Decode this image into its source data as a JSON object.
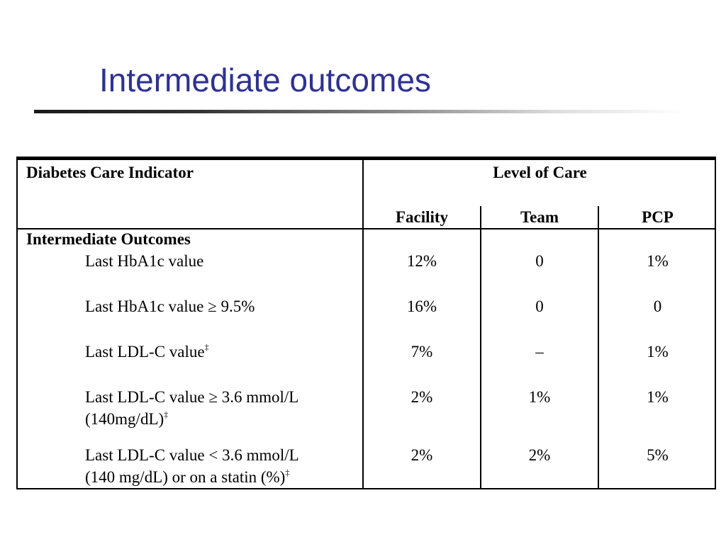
{
  "slide": {
    "title": "Intermediate outcomes"
  },
  "table": {
    "header": {
      "indicator": "Diabetes Care Indicator",
      "level_of_care": "Level of Care",
      "columns": [
        "Facility",
        "Team",
        "PCP"
      ]
    },
    "section_label": "Intermediate Outcomes",
    "rows": [
      {
        "line1": "Last HbA1c value",
        "line2": "",
        "sup": "",
        "values": [
          "12%",
          "0",
          "1%"
        ]
      },
      {
        "line1": "Last HbA1c value ≥ 9.5%",
        "line2": "",
        "sup": "",
        "values": [
          "16%",
          "0",
          "0"
        ]
      },
      {
        "line1": "Last LDL-C value",
        "line2": "",
        "sup": "‡",
        "values": [
          "7%",
          "–",
          "1%"
        ]
      },
      {
        "line1": "Last LDL-C value ≥ 3.6 mmol/L",
        "line2": "(140mg/dL)",
        "sup": "‡",
        "values": [
          "2%",
          "1%",
          "1%"
        ]
      },
      {
        "line1": "Last LDL-C value < 3.6 mmol/L",
        "line2": "(140 mg/dL) or on a statin (%)",
        "sup": "‡",
        "values": [
          "2%",
          "2%",
          "5%"
        ]
      }
    ]
  }
}
